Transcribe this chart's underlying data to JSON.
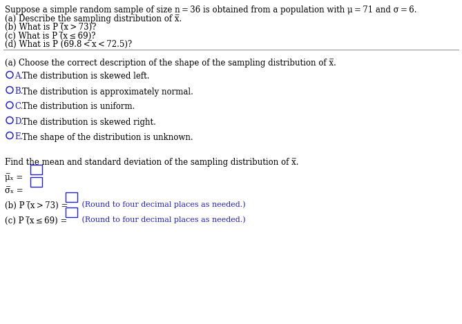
{
  "bg_color": "#ffffff",
  "text_color": "#000000",
  "blue_color": "#2222cc",
  "figsize": [
    6.69,
    4.7
  ],
  "dpi": 100,
  "header_lines": [
    "Suppose a simple random sample of size n = 36 is obtained from a population with μ = 71 and σ = 6.",
    "(a) Describe the sampling distribution of x̅.",
    "(b) What is P (̅x > 73)?",
    "(c) What is P (̅x ≤ 69)?",
    "(d) What is P (69.8 < ̅x < 72.5)?"
  ],
  "part_a_prompt": "(a) Choose the correct description of the shape of the sampling distribution of x̅.",
  "options": [
    {
      "label": "A.",
      "text": "  The distribution is skewed left."
    },
    {
      "label": "B.",
      "text": "  The distribution is approximately normal."
    },
    {
      "label": "C.",
      "text": "  The distribution is uniform."
    },
    {
      "label": "D.",
      "text": "  The distribution is skewed right."
    },
    {
      "label": "E.",
      "text": "  The shape of the distribution is unknown."
    }
  ],
  "find_text": "Find the mean and standard deviation of the sampling distribution of x̅.",
  "mu_label": "μ̅ₓ = ",
  "sigma_label": "σ̅ₓ = ",
  "part_b_text": "(b) P (̅x > 73) =",
  "part_b_note": " (Round to four decimal places as needed.)",
  "part_c_text": "(c) P (̅x ≤ 69) =",
  "part_c_note": " (Round to four decimal places as needed.)",
  "fs_header": 8.5,
  "fs_body": 8.5,
  "fs_note": 8.0
}
